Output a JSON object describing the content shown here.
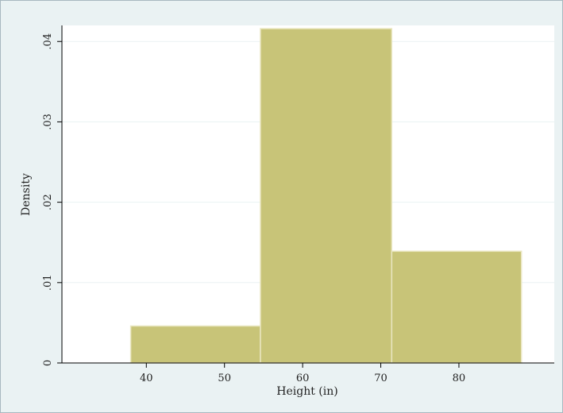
{
  "chart_data": {
    "type": "bar",
    "subtype": "histogram",
    "bins": [
      {
        "start": 38,
        "end": 54.6,
        "density": 0.0046
      },
      {
        "start": 54.6,
        "end": 71.4,
        "density": 0.0416
      },
      {
        "start": 71.4,
        "end": 88,
        "density": 0.0139
      }
    ],
    "xlabel": "Height (in)",
    "ylabel": "Density",
    "xlim": [
      29.2,
      92.2
    ],
    "ylim": [
      0,
      0.042
    ],
    "xticks": [
      40,
      50,
      60,
      70,
      80
    ],
    "xtick_labels": [
      "40",
      "50",
      "60",
      "70",
      "80"
    ],
    "yticks": [
      0,
      0.01,
      0.02,
      0.03,
      0.04
    ],
    "ytick_labels": [
      "0",
      ".01",
      ".02",
      ".03",
      ".04"
    ],
    "grid": true,
    "bar_color": "#c8c478",
    "bar_edge_color": "#e9e6c0",
    "plot_background": "#ffffff",
    "outer_background": "#eaf2f3",
    "grid_color": "#eaf2f3"
  }
}
